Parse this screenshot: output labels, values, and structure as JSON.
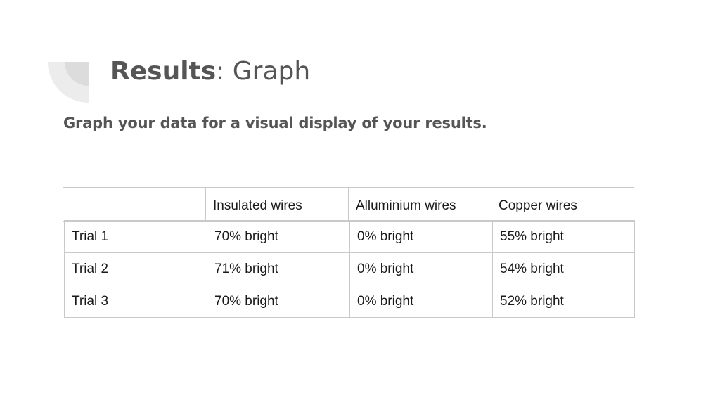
{
  "slide": {
    "title_bold": "Results",
    "title_rest": ": Graph",
    "subtitle": "Graph your data for a visual display of your results."
  },
  "table": {
    "columns": [
      "",
      "Insulated wires",
      "Alluminium wires",
      "Copper wires"
    ],
    "rows": [
      [
        "Trial 1",
        "70% bright",
        "0% bright",
        "55% bright"
      ],
      [
        "Trial 2",
        "71% bright",
        "0% bright",
        "54% bright"
      ],
      [
        "Trial 3",
        "70% bright",
        "0% bright",
        "52% bright"
      ]
    ]
  },
  "colors": {
    "text": "#555555",
    "border": "#c9c9c9",
    "deco_light": "#ececec",
    "deco_mid": "#dcdcdc"
  }
}
